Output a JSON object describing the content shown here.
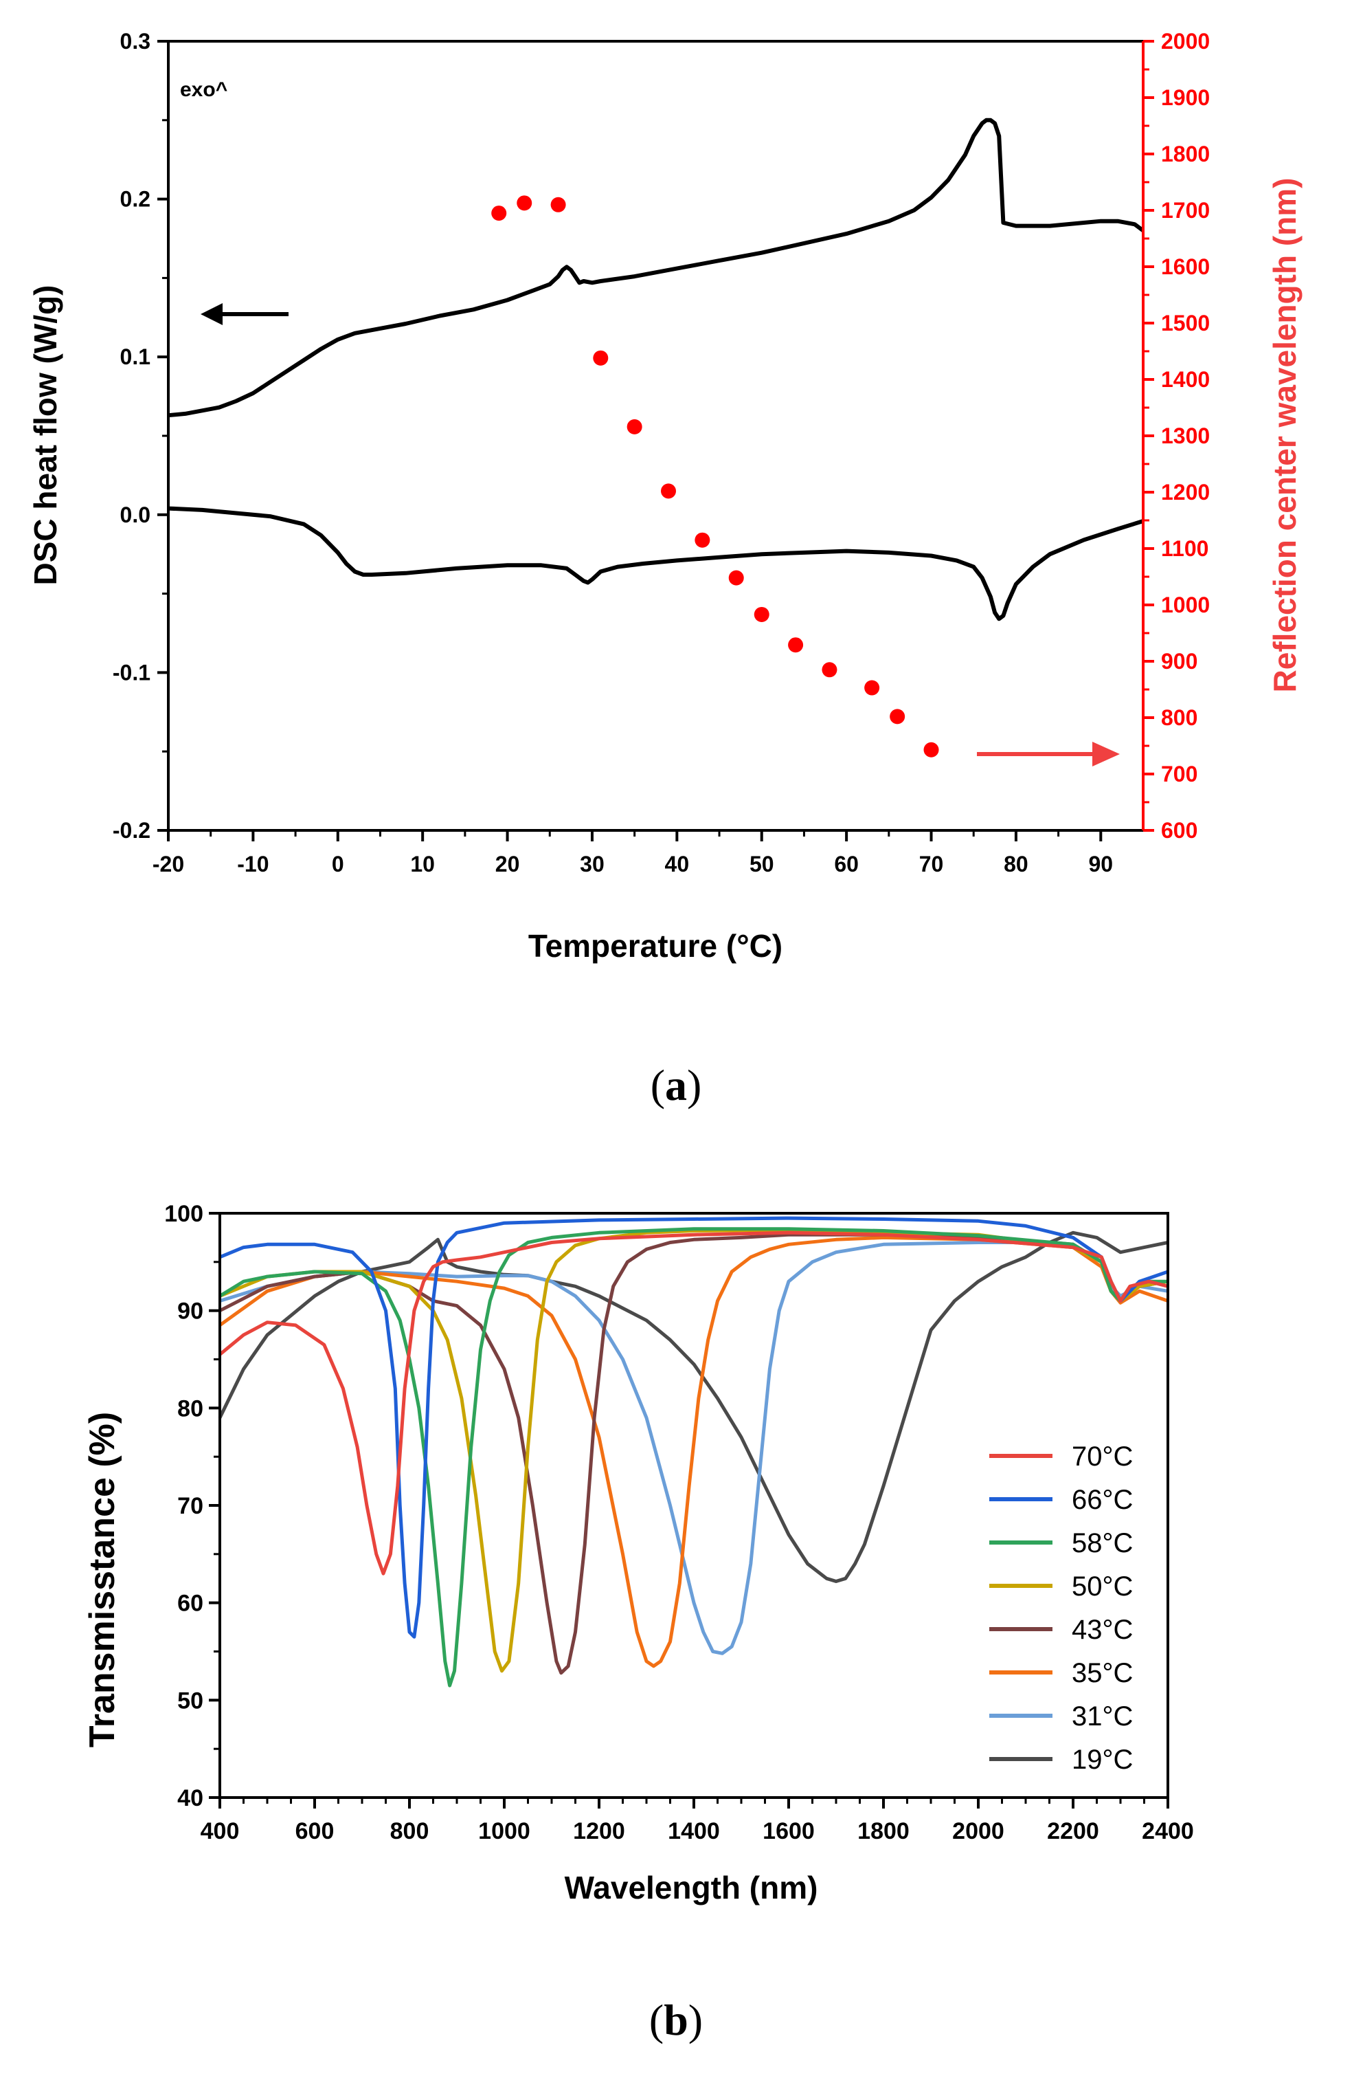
{
  "chart_data": [
    {
      "type": "line",
      "panel_label": "a",
      "annotation": "exo^",
      "xlabel": "Temperature (°C)",
      "ylabel": "DSC heat flow (W/g)",
      "y2label": "Reflection center wavelength (nm)",
      "xlim": [
        -20,
        95
      ],
      "ylim": [
        -0.2,
        0.3
      ],
      "y2lim": [
        600,
        2000
      ],
      "x_ticks": [
        -20,
        -10,
        0,
        10,
        20,
        30,
        40,
        50,
        60,
        70,
        80,
        90
      ],
      "x_tick_labels": [
        "-20",
        "-10",
        "0",
        "10",
        "20",
        "30",
        "40",
        "50",
        "60",
        "70",
        "80",
        "90"
      ],
      "y_ticks": [
        -0.2,
        -0.1,
        0.0,
        0.1,
        0.2,
        0.3
      ],
      "y_tick_labels": [
        "-0.2",
        "-0.1",
        "0.0",
        "0.1",
        "0.2",
        "0.3"
      ],
      "y2_ticks": [
        600,
        700,
        800,
        900,
        1000,
        1100,
        1200,
        1300,
        1400,
        1500,
        1600,
        1700,
        1800,
        1900,
        2000
      ],
      "y2_tick_labels": [
        "600",
        "700",
        "800",
        "900",
        "1000",
        "1100",
        "1200",
        "1300",
        "1400",
        "1500",
        "1600",
        "1700",
        "1800",
        "1900",
        "2000"
      ],
      "series": [
        {
          "name": "DSC heating",
          "axis": "left",
          "color": "#000000",
          "x": [
            -20,
            -18,
            -16,
            -14,
            -12,
            -10,
            -8,
            -6,
            -4,
            -2,
            0,
            2,
            4,
            8,
            12,
            16,
            20,
            23,
            25,
            26,
            26.5,
            27,
            27.5,
            28,
            28.5,
            29,
            30,
            31,
            35,
            40,
            45,
            50,
            55,
            60,
            65,
            68,
            70,
            72,
            74,
            75,
            76,
            76.5,
            77,
            77.5,
            78,
            78.5,
            80,
            84,
            88,
            90,
            92,
            94,
            95
          ],
          "y": [
            0.063,
            0.064,
            0.066,
            0.068,
            0.072,
            0.077,
            0.084,
            0.091,
            0.098,
            0.105,
            0.111,
            0.115,
            0.117,
            0.121,
            0.126,
            0.13,
            0.136,
            0.142,
            0.146,
            0.151,
            0.155,
            0.157,
            0.155,
            0.151,
            0.147,
            0.148,
            0.147,
            0.148,
            0.151,
            0.156,
            0.161,
            0.166,
            0.172,
            0.178,
            0.186,
            0.193,
            0.201,
            0.212,
            0.228,
            0.24,
            0.248,
            0.25,
            0.25,
            0.248,
            0.24,
            0.185,
            0.183,
            0.183,
            0.185,
            0.186,
            0.186,
            0.184,
            0.18
          ]
        },
        {
          "name": "DSC cooling",
          "axis": "left",
          "color": "#000000",
          "x": [
            -20,
            -16,
            -12,
            -8,
            -4,
            -2,
            0,
            1,
            2,
            3,
            4,
            8,
            14,
            20,
            24,
            27,
            28,
            29,
            29.5,
            30,
            31,
            33,
            36,
            40,
            45,
            50,
            55,
            60,
            65,
            70,
            73,
            75,
            76,
            77,
            77.5,
            78,
            78.5,
            79,
            80,
            82,
            84,
            88,
            92,
            95
          ],
          "y": [
            0.004,
            0.003,
            0.001,
            -0.001,
            -0.006,
            -0.013,
            -0.024,
            -0.031,
            -0.036,
            -0.038,
            -0.038,
            -0.037,
            -0.034,
            -0.032,
            -0.032,
            -0.034,
            -0.038,
            -0.042,
            -0.043,
            -0.041,
            -0.036,
            -0.033,
            -0.031,
            -0.029,
            -0.027,
            -0.025,
            -0.024,
            -0.023,
            -0.024,
            -0.026,
            -0.029,
            -0.033,
            -0.04,
            -0.052,
            -0.062,
            -0.066,
            -0.064,
            -0.056,
            -0.044,
            -0.033,
            -0.025,
            -0.016,
            -0.009,
            -0.004
          ]
        },
        {
          "name": "Reflection center wavelength",
          "axis": "right",
          "type": "scatter",
          "color": "#ff0000",
          "x": [
            19,
            22,
            26,
            31,
            35,
            39,
            43,
            47,
            50,
            54,
            58,
            63,
            66,
            70
          ],
          "y": [
            1695,
            1713,
            1710,
            1438,
            1316,
            1202,
            1115,
            1048,
            983,
            929,
            885,
            853,
            802,
            743
          ]
        }
      ],
      "arrows": [
        {
          "direction": "left",
          "color": "#000000",
          "meaning": "DSC curve uses left axis"
        },
        {
          "direction": "right",
          "color": "#f04040",
          "meaning": "dots use right axis"
        }
      ]
    },
    {
      "type": "line",
      "panel_label": "b",
      "xlabel": "Wavelength (nm)",
      "ylabel": "Transmisstance (%)",
      "xlim": [
        400,
        2400
      ],
      "ylim": [
        40,
        100
      ],
      "x_ticks": [
        400,
        600,
        800,
        1000,
        1200,
        1400,
        1600,
        1800,
        2000,
        2200,
        2400
      ],
      "x_tick_labels": [
        "400",
        "600",
        "800",
        "1000",
        "1200",
        "1400",
        "1600",
        "1800",
        "2000",
        "2200",
        "2400"
      ],
      "y_ticks": [
        40,
        50,
        60,
        70,
        80,
        90,
        100
      ],
      "y_tick_labels": [
        "40",
        "50",
        "60",
        "70",
        "80",
        "90",
        "100"
      ],
      "legend_position": "center-right",
      "series": [
        {
          "name": "70°C",
          "color": "#e8443c",
          "x": [
            400,
            450,
            500,
            560,
            620,
            660,
            690,
            710,
            730,
            745,
            760,
            775,
            790,
            810,
            830,
            850,
            870,
            900,
            950,
            1000,
            1100,
            1200,
            1400,
            1600,
            1800,
            2000,
            2200,
            2260,
            2280,
            2300,
            2320,
            2360,
            2400
          ],
          "y": [
            85.5,
            87.5,
            88.8,
            88.5,
            86.5,
            82,
            76,
            70,
            65,
            63,
            65,
            72,
            82,
            90,
            93,
            94.5,
            95,
            95.2,
            95.5,
            96,
            97,
            97.4,
            97.8,
            98,
            97.8,
            97.3,
            96.5,
            95.5,
            93,
            91,
            92.5,
            93,
            92.5
          ]
        },
        {
          "name": "66°C",
          "color": "#1f5fd6",
          "x": [
            400,
            450,
            500,
            600,
            680,
            720,
            750,
            770,
            780,
            790,
            800,
            810,
            820,
            830,
            840,
            850,
            860,
            880,
            900,
            1000,
            1200,
            1400,
            1600,
            1800,
            2000,
            2100,
            2200,
            2260,
            2280,
            2300,
            2340,
            2400
          ],
          "y": [
            95.5,
            96.5,
            96.8,
            96.8,
            96,
            94,
            90,
            82,
            70,
            62,
            57,
            56.5,
            60,
            70,
            82,
            91,
            95,
            97,
            98,
            99,
            99.3,
            99.4,
            99.5,
            99.4,
            99.2,
            98.7,
            97.5,
            95.5,
            93,
            91,
            93,
            94
          ]
        },
        {
          "name": "58°C",
          "color": "#2fa35a",
          "x": [
            400,
            450,
            500,
            600,
            700,
            750,
            780,
            800,
            820,
            840,
            860,
            875,
            885,
            895,
            910,
            930,
            950,
            970,
            990,
            1010,
            1050,
            1100,
            1200,
            1400,
            1600,
            1800,
            2000,
            2200,
            2260,
            2280,
            2300,
            2340,
            2400
          ],
          "y": [
            91.5,
            93,
            93.5,
            94,
            93.8,
            92,
            89,
            85,
            80,
            72,
            62,
            54,
            51.5,
            53,
            62,
            76,
            86,
            91,
            94,
            95.7,
            97,
            97.5,
            98,
            98.4,
            98.4,
            98.2,
            97.7,
            96.8,
            95,
            92,
            91,
            93,
            93
          ]
        },
        {
          "name": "50°C",
          "color": "#c8a400",
          "x": [
            400,
            500,
            600,
            700,
            800,
            850,
            880,
            910,
            940,
            960,
            980,
            995,
            1010,
            1030,
            1050,
            1070,
            1090,
            1110,
            1150,
            1200,
            1300,
            1400,
            1600,
            1800,
            2000,
            2200,
            2260,
            2280,
            2300,
            2340,
            2400
          ],
          "y": [
            91.5,
            93.5,
            94,
            94,
            92.5,
            90,
            87,
            81,
            71,
            63,
            55,
            53,
            54,
            62,
            76,
            87,
            93,
            95,
            96.7,
            97.4,
            98,
            98.2,
            98.3,
            98,
            97.8,
            96.5,
            95,
            92,
            91,
            92.5,
            93
          ]
        },
        {
          "name": "43°C",
          "color": "#7a4040",
          "x": [
            400,
            500,
            600,
            700,
            800,
            850,
            900,
            950,
            1000,
            1030,
            1060,
            1090,
            1110,
            1120,
            1135,
            1150,
            1170,
            1190,
            1210,
            1230,
            1260,
            1300,
            1350,
            1400,
            1500,
            1600,
            1800,
            2000,
            2200,
            2260,
            2280,
            2300,
            2340,
            2400
          ],
          "y": [
            90,
            92.5,
            93.5,
            94,
            92.5,
            91,
            90.5,
            88.5,
            84,
            79,
            70,
            60,
            54,
            52.8,
            53.5,
            57,
            66,
            79,
            88,
            92.5,
            95,
            96.3,
            97,
            97.3,
            97.5,
            97.8,
            97.8,
            97.6,
            96.8,
            95,
            92,
            91,
            92.5,
            93
          ]
        },
        {
          "name": "35°C",
          "color": "#f27014",
          "x": [
            400,
            500,
            600,
            700,
            800,
            900,
            1000,
            1050,
            1100,
            1150,
            1200,
            1250,
            1280,
            1300,
            1315,
            1330,
            1350,
            1370,
            1390,
            1410,
            1430,
            1450,
            1480,
            1520,
            1560,
            1600,
            1700,
            1800,
            2000,
            2200,
            2260,
            2280,
            2300,
            2340,
            2400
          ],
          "y": [
            88.5,
            92,
            93.5,
            94,
            93.5,
            93,
            92.3,
            91.5,
            89.5,
            85,
            77,
            65,
            57,
            54,
            53.5,
            54,
            56,
            62,
            72,
            81,
            87,
            91,
            94,
            95.5,
            96.3,
            96.8,
            97.3,
            97.5,
            97.3,
            96.5,
            94.5,
            92,
            90.8,
            92,
            91
          ]
        },
        {
          "name": "31°C",
          "color": "#6a9ed8",
          "x": [
            400,
            500,
            600,
            700,
            800,
            900,
            1000,
            1050,
            1100,
            1150,
            1200,
            1250,
            1300,
            1350,
            1400,
            1420,
            1440,
            1460,
            1480,
            1500,
            1520,
            1540,
            1560,
            1580,
            1600,
            1650,
            1700,
            1800,
            2000,
            2100,
            2200,
            2260,
            2280,
            2300,
            2340,
            2400
          ],
          "y": [
            91,
            92.5,
            93.5,
            94,
            93.8,
            93.5,
            93.6,
            93.6,
            93,
            91.5,
            89,
            85,
            79,
            70,
            60,
            57,
            55,
            54.8,
            55.5,
            58,
            64,
            74,
            84,
            90,
            93,
            95,
            96,
            96.8,
            97,
            97,
            96.5,
            95,
            92.5,
            91.5,
            92.5,
            92
          ]
        },
        {
          "name": "19°C",
          "color": "#4a4a4a",
          "x": [
            400,
            450,
            500,
            550,
            600,
            650,
            700,
            750,
            800,
            840,
            860,
            880,
            900,
            950,
            1000,
            1050,
            1100,
            1150,
            1200,
            1300,
            1350,
            1400,
            1450,
            1500,
            1550,
            1600,
            1640,
            1680,
            1700,
            1720,
            1740,
            1760,
            1800,
            1850,
            1900,
            1950,
            2000,
            2050,
            2100,
            2150,
            2200,
            2250,
            2300,
            2350,
            2400
          ],
          "y": [
            79,
            84,
            87.5,
            89.5,
            91.5,
            93,
            94,
            94.5,
            95,
            96.5,
            97.3,
            95,
            94.5,
            94,
            93.7,
            93.6,
            93,
            92.5,
            91.5,
            89,
            87,
            84.5,
            81,
            77,
            72,
            67,
            64,
            62.5,
            62.2,
            62.5,
            64,
            66,
            72,
            80,
            88,
            91,
            93,
            94.5,
            95.5,
            97,
            98,
            97.5,
            96,
            96.5,
            97
          ]
        }
      ]
    }
  ]
}
